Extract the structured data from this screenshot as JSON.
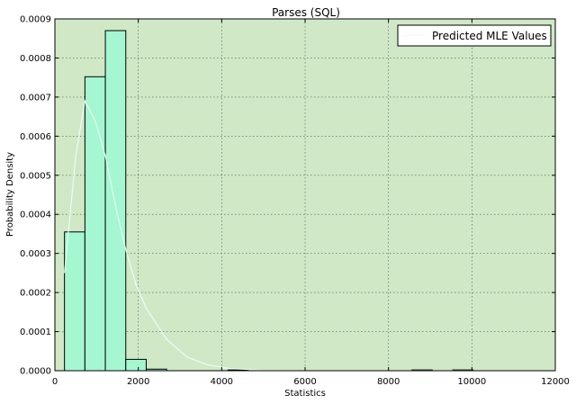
{
  "chart_data": {
    "type": "bar",
    "title": "Parses (SQL)",
    "xlabel": "Statistics",
    "ylabel": "Probability Density",
    "xlim": [
      0,
      12000
    ],
    "ylim": [
      0,
      0.0009
    ],
    "x_ticks": [
      0,
      2000,
      4000,
      6000,
      8000,
      10000,
      12000
    ],
    "x_tick_labels": [
      "0",
      "2000",
      "4000",
      "6000",
      "8000",
      "10000",
      "12000"
    ],
    "y_ticks": [
      0,
      0.0001,
      0.0002,
      0.0003,
      0.0004,
      0.0005,
      0.0006,
      0.0007,
      0.0008,
      0.0009
    ],
    "y_tick_labels": [
      "0.0000",
      "0.0001",
      "0.0002",
      "0.0003",
      "0.0004",
      "0.0005",
      "0.0006",
      "0.0007",
      "0.0008",
      "0.0009"
    ],
    "grid": true,
    "legend_position": "top-right",
    "histogram": {
      "bin_edges": [
        230,
        720,
        1210,
        1700,
        2190,
        2680,
        3170,
        3660,
        4150,
        4640,
        5130,
        5620,
        6110,
        6600,
        7090,
        7580,
        8070,
        8560,
        9050,
        9540,
        10030
      ],
      "values": [
        0.000355,
        0.000752,
        0.00087,
        2.9e-05,
        4e-06,
        0,
        0,
        0,
        2e-06,
        0,
        0,
        0,
        0,
        0,
        0,
        0,
        0,
        2e-06,
        0,
        2e-06
      ]
    },
    "series": [
      {
        "name": "Predicted MLE Values",
        "type": "line",
        "x": [
          230,
          500,
          720,
          965,
          1210,
          1455,
          1700,
          1945,
          2190,
          2680,
          3170,
          3660,
          4150,
          5000,
          6000,
          8000,
          10000,
          12000
        ],
        "y": [
          0.00025,
          0.00055,
          0.00069,
          0.00064,
          0.00055,
          0.00042,
          0.00031,
          0.00022,
          0.00016,
          8e-05,
          3.5e-05,
          1.5e-05,
          6e-06,
          1e-06,
          0,
          0,
          0,
          0
        ]
      }
    ],
    "colors": {
      "plot_background": "#d0e8c6",
      "bar_fill": "#a4f7d0",
      "bar_edge": "#000000",
      "line": "#e8fff4",
      "grid": "#555555"
    }
  }
}
